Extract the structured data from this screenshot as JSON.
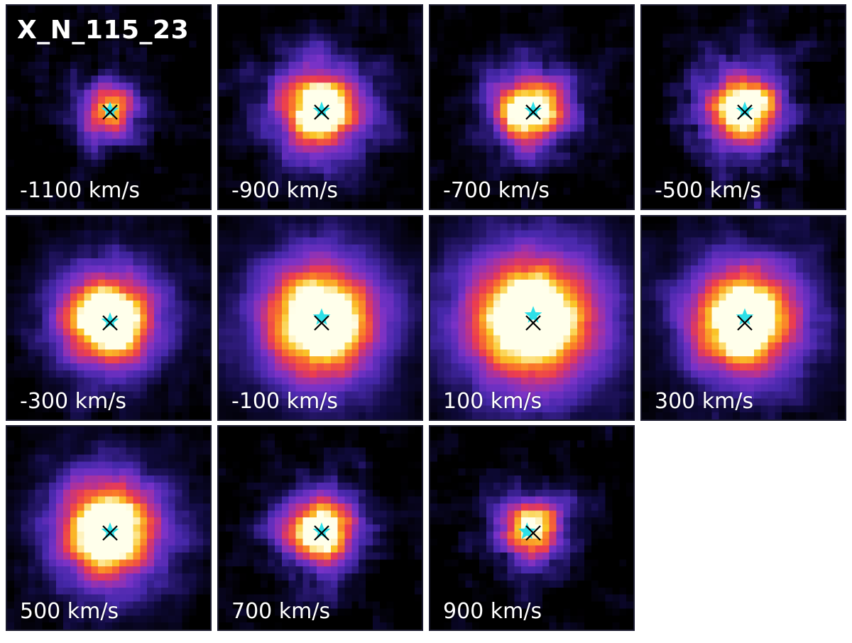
{
  "figure": {
    "object_name": "X_N_115_23",
    "panels": [
      {
        "velocity_label": "-1100 km/s",
        "peak": 0.55,
        "spread": 0.14,
        "noise": 0.55,
        "star_offset": [
          0.0,
          0.0
        ]
      },
      {
        "velocity_label": "-900 km/s",
        "peak": 0.95,
        "spread": 0.22,
        "noise": 0.4,
        "star_offset": [
          0.0,
          0.0
        ]
      },
      {
        "velocity_label": "-700 km/s",
        "peak": 0.9,
        "spread": 0.18,
        "noise": 0.45,
        "star_offset": [
          0.0,
          0.0
        ]
      },
      {
        "velocity_label": "-500 km/s",
        "peak": 0.85,
        "spread": 0.2,
        "noise": 0.55,
        "star_offset": [
          0.0,
          0.0
        ]
      },
      {
        "velocity_label": "-300 km/s",
        "peak": 1.0,
        "spread": 0.24,
        "noise": 0.25,
        "star_offset": [
          0.0,
          0.0
        ]
      },
      {
        "velocity_label": "-100 km/s",
        "peak": 1.0,
        "spread": 0.3,
        "noise": 0.15,
        "star_offset": [
          0.0,
          -0.02
        ]
      },
      {
        "velocity_label": "100 km/s",
        "peak": 1.0,
        "spread": 0.34,
        "noise": 0.15,
        "star_offset": [
          0.0,
          -0.03
        ]
      },
      {
        "velocity_label": "300 km/s",
        "peak": 1.0,
        "spread": 0.28,
        "noise": 0.25,
        "star_offset": [
          0.0,
          -0.02
        ]
      },
      {
        "velocity_label": "500 km/s",
        "peak": 1.0,
        "spread": 0.26,
        "noise": 0.3,
        "star_offset": [
          0.0,
          0.0
        ]
      },
      {
        "velocity_label": "700 km/s",
        "peak": 0.85,
        "spread": 0.18,
        "noise": 0.5,
        "star_offset": [
          0.0,
          0.0
        ]
      },
      {
        "velocity_label": "900 km/s",
        "peak": 0.7,
        "spread": 0.16,
        "noise": 0.55,
        "star_offset": [
          -0.03,
          0.0
        ]
      }
    ],
    "colors": {
      "background": "#000000",
      "star_marker": "#2de0e8",
      "cross_marker": "#000000",
      "label_text": "#ffffff"
    },
    "colormap": "plasma-like (black → indigo → purple → red → orange → yellow → white)",
    "icons": {
      "star_marker": "cyan-star-icon",
      "cross_marker": "black-x-icon"
    }
  }
}
